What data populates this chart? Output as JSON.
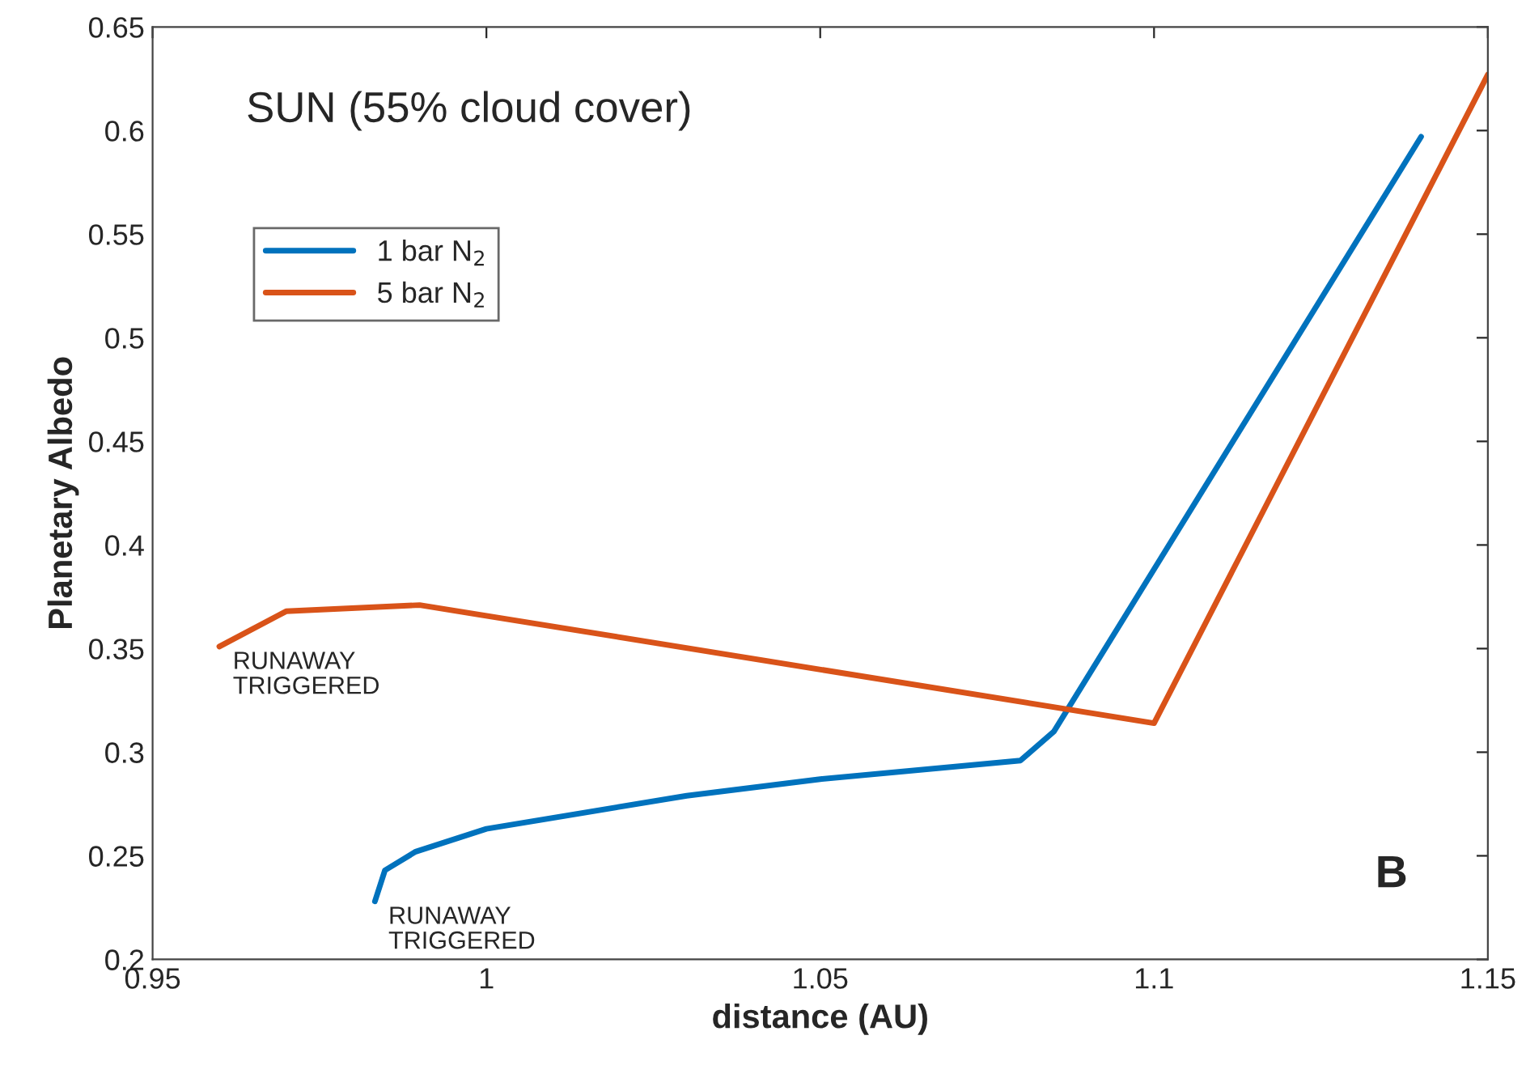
{
  "chart_data": {
    "type": "line",
    "xlabel": "distance (AU)",
    "ylabel": "Planetary Albedo",
    "series": [
      {
        "name": "1 bar N$_{2}$",
        "color": "#0072bd",
        "x": [
          0.9833,
          0.9848,
          0.9894,
          1,
          1.03,
          1.05,
          1.08,
          1.085,
          1.14
        ],
        "values": [
          0.228,
          0.243,
          0.252,
          0.263,
          0.279,
          0.287,
          0.296,
          0.31,
          0.597
        ]
      },
      {
        "name": "5 bar N$_{2}$",
        "color": "#d95319",
        "x": [
          0.96,
          0.97,
          0.99,
          1.1,
          1.15
        ],
        "values": [
          0.351,
          0.368,
          0.371,
          0.314,
          0.627
        ]
      }
    ],
    "xlim": [
      0.95,
      1.15
    ],
    "xticks": [
      0.95,
      1,
      1.05,
      1.1,
      1.15
    ],
    "ylim": [
      0.2,
      0.65
    ],
    "yticks": [
      0.2,
      0.25,
      0.3,
      0.35,
      0.4,
      0.45,
      0.5,
      0.55,
      0.6,
      0.65
    ],
    "annotations": [
      "SUN (55% cloud cover)",
      "B",
      {
        "text": "RUNAWAY\nTRIGGERED",
        "x": 0.96,
        "y": 0.351
      },
      {
        "text": "RUNAWAY\nTRIGGERED",
        "x": 0.9833,
        "y": 0.228
      }
    ],
    "legend": "top left",
    "grid": false,
    "marker": "none",
    "line_style": "solid"
  }
}
